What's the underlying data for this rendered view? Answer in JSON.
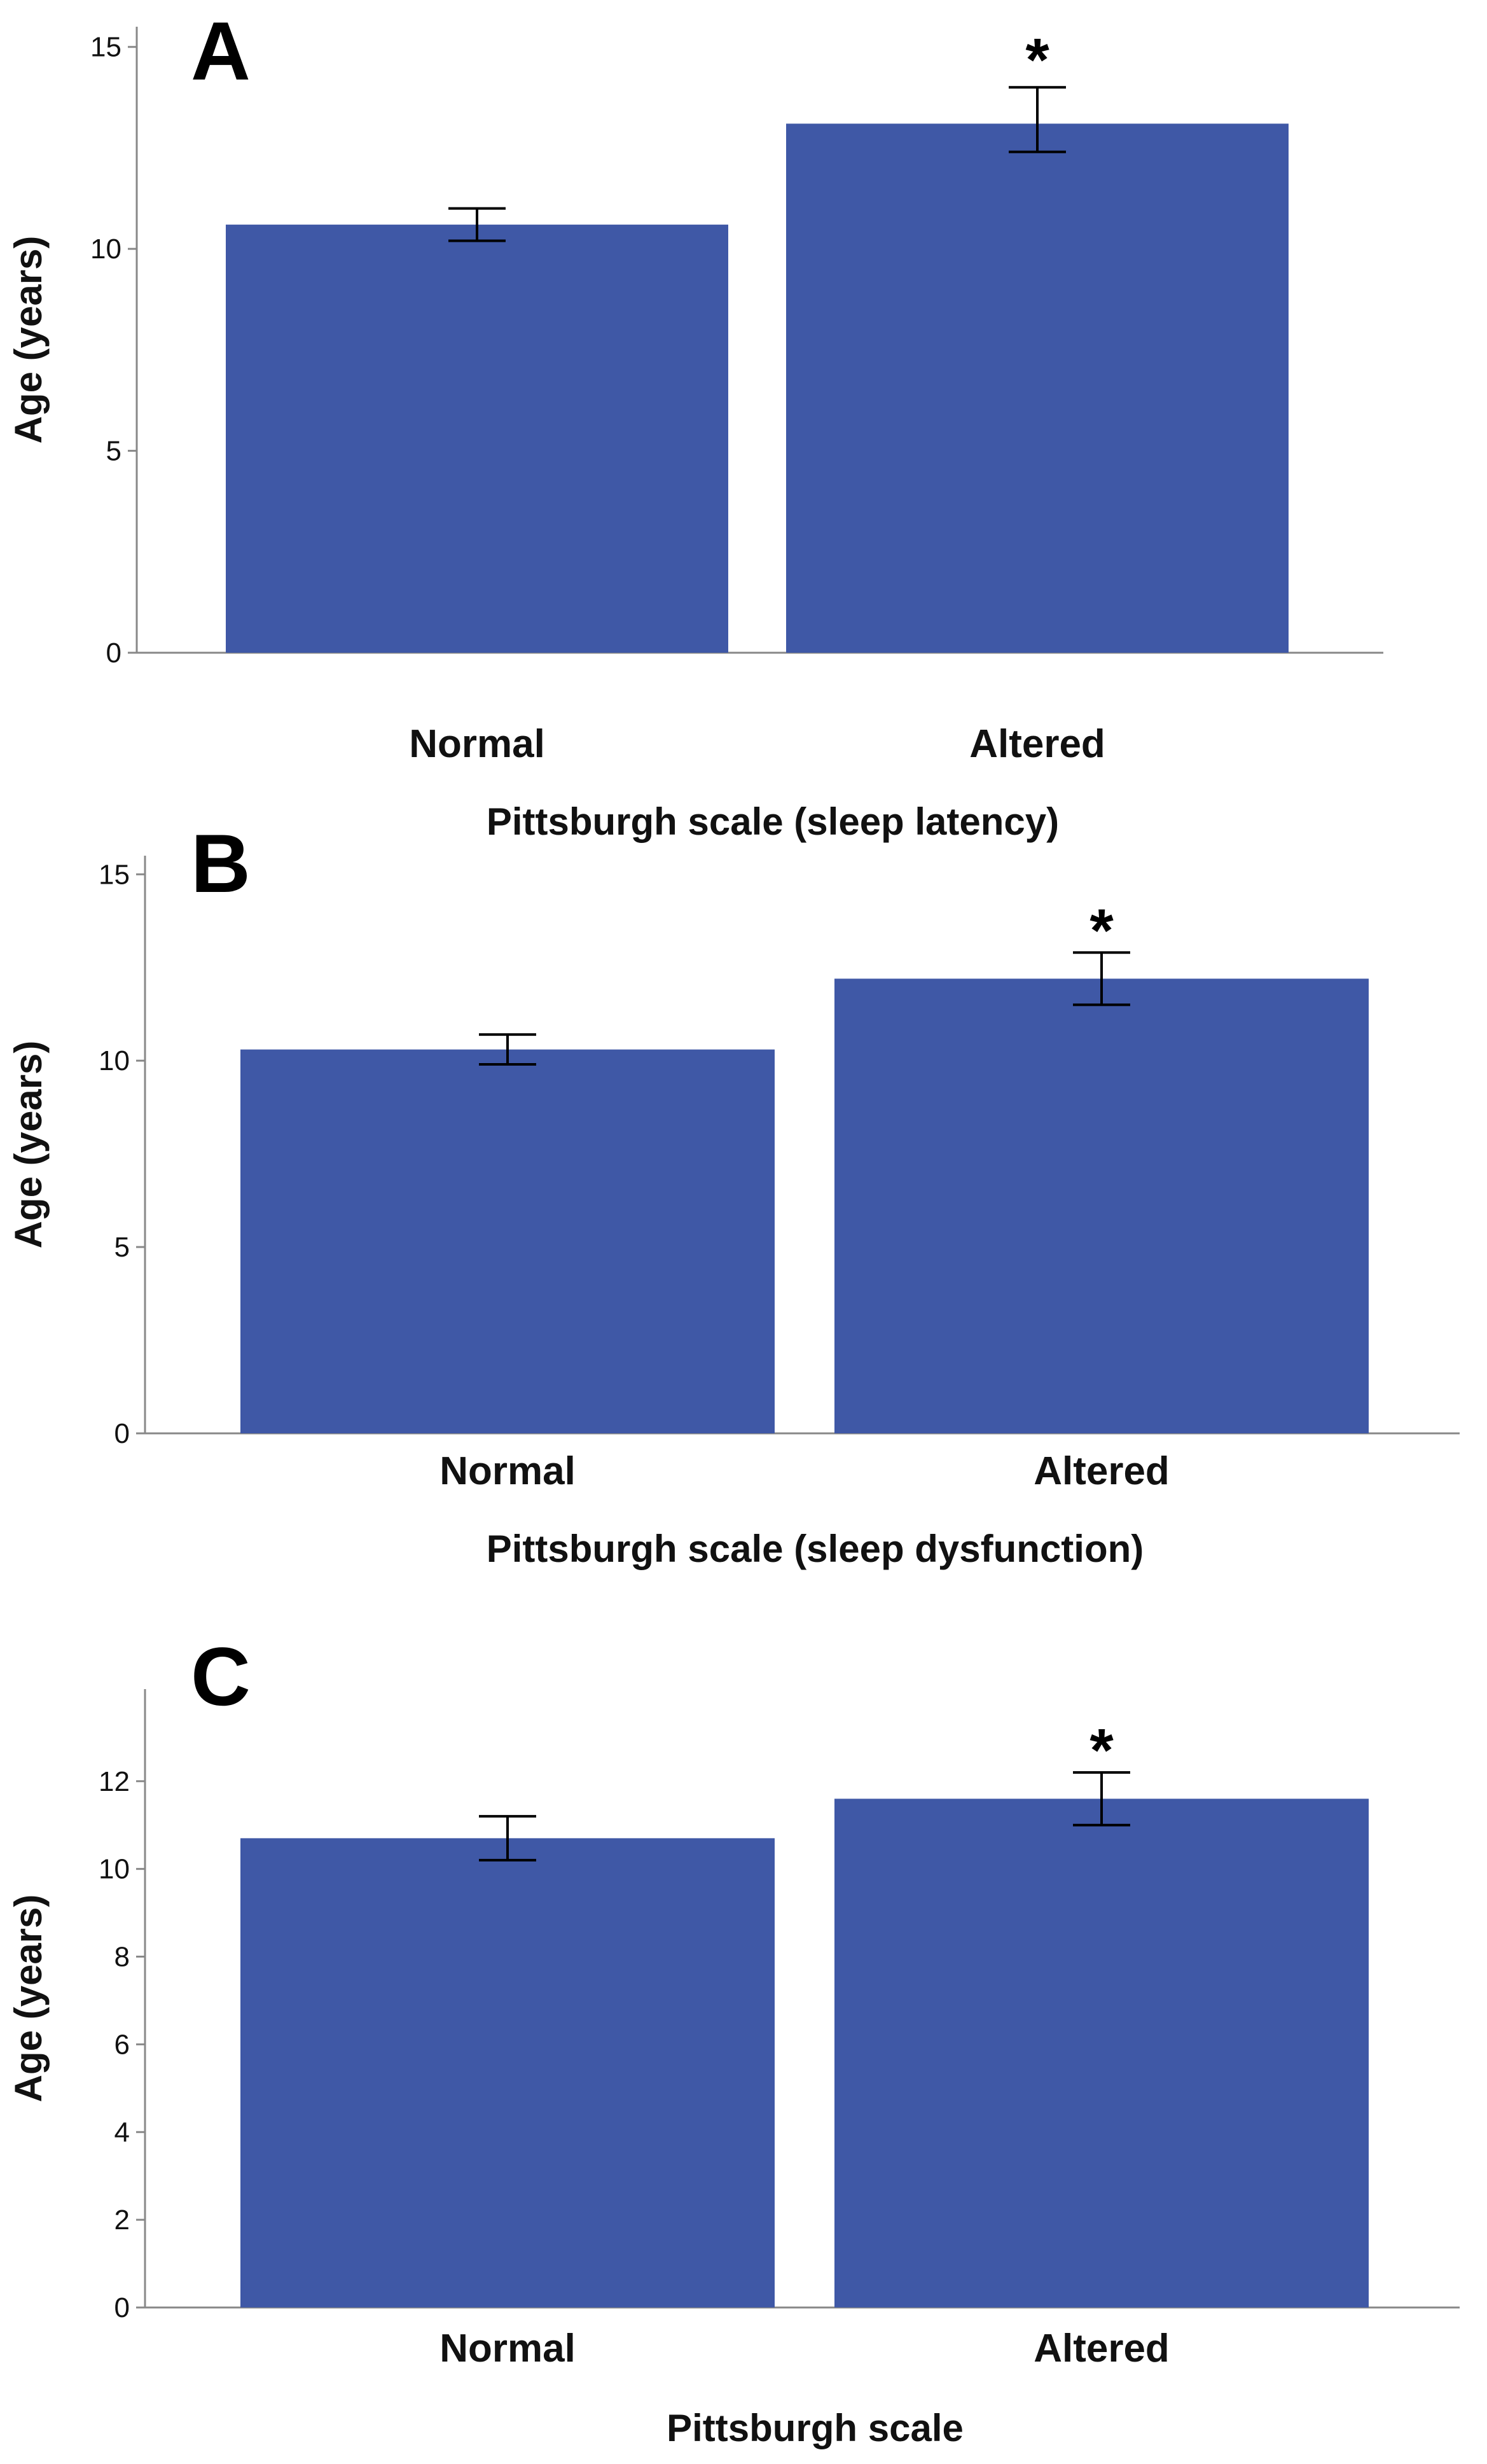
{
  "colors": {
    "bar": "#3f58a6",
    "axis": "#888888",
    "errorbar": "#000000"
  },
  "chart_data": [
    {
      "type": "bar",
      "panel": "A",
      "categories": [
        "Normal",
        "Altered"
      ],
      "values": [
        10.6,
        13.1
      ],
      "errors": [
        [
          10.2,
          11.0
        ],
        [
          12.4,
          14.0
        ]
      ],
      "significance": [
        "",
        "*"
      ],
      "xlabel": "Pittsburgh scale (sleep latency)",
      "ylabel": "Age (years)",
      "ylim": [
        0,
        15.5
      ],
      "yticks": [
        0,
        5,
        10,
        15
      ],
      "grid": false
    },
    {
      "type": "bar",
      "panel": "B",
      "categories": [
        "Normal",
        "Altered"
      ],
      "values": [
        10.3,
        12.2
      ],
      "errors": [
        [
          9.9,
          10.7
        ],
        [
          11.5,
          12.9
        ]
      ],
      "significance": [
        "",
        "*"
      ],
      "xlabel": "Pittsburgh scale (sleep dysfunction)",
      "ylabel": "Age (years)",
      "ylim": [
        0,
        15.5
      ],
      "yticks": [
        0,
        5,
        10,
        15
      ],
      "grid": false
    },
    {
      "type": "bar",
      "panel": "C",
      "categories": [
        "Normal",
        "Altered"
      ],
      "values": [
        10.7,
        11.6
      ],
      "errors": [
        [
          10.2,
          11.2
        ],
        [
          11.0,
          12.2
        ]
      ],
      "significance": [
        "",
        "*"
      ],
      "xlabel": "Pittsburgh scale",
      "ylabel": "Age (years)",
      "ylim": [
        0,
        14.1
      ],
      "yticks": [
        0,
        2,
        4,
        6,
        8,
        10,
        12
      ],
      "grid": false
    }
  ]
}
